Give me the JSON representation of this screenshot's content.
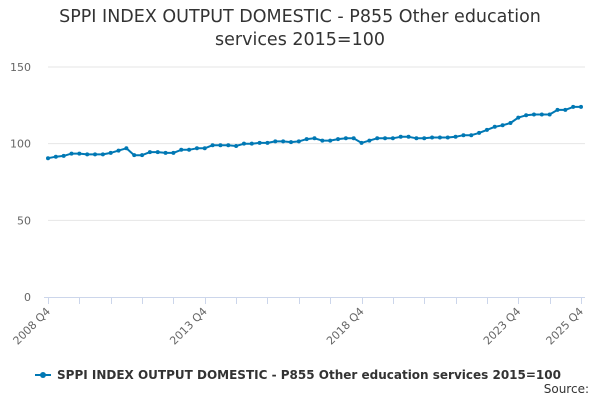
{
  "chart_data": {
    "type": "line",
    "title_lines": [
      "SPPI INDEX OUTPUT DOMESTIC - P855 Other education",
      "services 2015=100"
    ],
    "xlabel": "",
    "ylabel": "",
    "ylim": [
      0,
      150
    ],
    "yticks": [
      0,
      50,
      100,
      150
    ],
    "xtick_labels": [
      {
        "index": 0,
        "label": "2008 Q4"
      },
      {
        "index": 20,
        "label": "2013 Q4"
      },
      {
        "index": 40,
        "label": "2018 Q4"
      },
      {
        "index": 60,
        "label": "2023 Q4"
      },
      {
        "index": 68,
        "label": "2025 Q4"
      }
    ],
    "grid": true,
    "legend_position": "bottom",
    "source_label": "Source:",
    "series": [
      {
        "name": "SPPI INDEX OUTPUT DOMESTIC - P855 Other education services 2015=100",
        "color": "#0078b4",
        "x": [
          "2008 Q4",
          "2009 Q1",
          "2009 Q2",
          "2009 Q3",
          "2009 Q4",
          "2010 Q1",
          "2010 Q2",
          "2010 Q3",
          "2010 Q4",
          "2011 Q1",
          "2011 Q2",
          "2011 Q3",
          "2011 Q4",
          "2012 Q1",
          "2012 Q2",
          "2012 Q3",
          "2012 Q4",
          "2013 Q1",
          "2013 Q2",
          "2013 Q3",
          "2013 Q4",
          "2014 Q1",
          "2014 Q2",
          "2014 Q3",
          "2014 Q4",
          "2015 Q1",
          "2015 Q2",
          "2015 Q3",
          "2015 Q4",
          "2016 Q1",
          "2016 Q2",
          "2016 Q3",
          "2016 Q4",
          "2017 Q1",
          "2017 Q2",
          "2017 Q3",
          "2017 Q4",
          "2018 Q1",
          "2018 Q2",
          "2018 Q3",
          "2018 Q4",
          "2019 Q1",
          "2019 Q2",
          "2019 Q3",
          "2019 Q4",
          "2020 Q1",
          "2020 Q2",
          "2020 Q3",
          "2020 Q4",
          "2021 Q1",
          "2021 Q2",
          "2021 Q3",
          "2021 Q4",
          "2022 Q1",
          "2022 Q2",
          "2022 Q3",
          "2022 Q4",
          "2023 Q1",
          "2023 Q2",
          "2023 Q3",
          "2023 Q4",
          "2024 Q1",
          "2024 Q2",
          "2024 Q3",
          "2024 Q4",
          "2025 Q1",
          "2025 Q2",
          "2025 Q3",
          "2025 Q4"
        ],
        "values": [
          90.5,
          91.5,
          92,
          93.5,
          93.5,
          93,
          93,
          93,
          94,
          95.5,
          97,
          92.5,
          92.5,
          94.5,
          94.5,
          94,
          94,
          96,
          96,
          97,
          97,
          99,
          99,
          99,
          98.5,
          100,
          100,
          100.5,
          100.5,
          101.5,
          101.5,
          101,
          101.5,
          103,
          103.5,
          102,
          102,
          103,
          103.5,
          103.5,
          100.5,
          102,
          103.5,
          103.5,
          103.5,
          104.5,
          104.5,
          103.5,
          103.5,
          104,
          104,
          104,
          104.5,
          105.5,
          105.5,
          107,
          109,
          111,
          112,
          113.5,
          117,
          118.5,
          119,
          119,
          119,
          122,
          122,
          124,
          124
        ]
      }
    ]
  }
}
